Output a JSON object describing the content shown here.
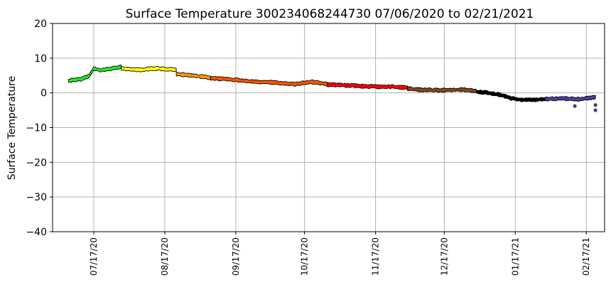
{
  "chart_data": {
    "type": "scatter",
    "title": "Surface Temperature 300234068244730  07/06/2020 to 02/21/2021",
    "xlabel": "",
    "ylabel": "Surface Temperature",
    "xlim": [
      "2020-06-29",
      "2021-02-25"
    ],
    "ylim": [
      -40,
      20
    ],
    "grid": true,
    "y_ticks": [
      "20",
      "10",
      "0",
      "−10",
      "−20",
      "−30",
      "−40"
    ],
    "x_ticks": [
      {
        "date": "2020-07-17",
        "label": "07/17/20"
      },
      {
        "date": "2020-08-17",
        "label": "08/17/20"
      },
      {
        "date": "2020-09-17",
        "label": "09/17/20"
      },
      {
        "date": "2020-10-17",
        "label": "10/17/20"
      },
      {
        "date": "2020-11-17",
        "label": "11/17/20"
      },
      {
        "date": "2020-12-17",
        "label": "12/17/20"
      },
      {
        "date": "2021-01-17",
        "label": "01/17/21"
      },
      {
        "date": "2021-02-17",
        "label": "02/17/21"
      }
    ],
    "series": [
      {
        "color": "#22ee22",
        "points": [
          [
            "2020-07-06",
            3.5
          ],
          [
            "2020-07-09",
            3.8
          ],
          [
            "2020-07-12",
            4.0
          ],
          [
            "2020-07-15",
            5.0
          ],
          [
            "2020-07-17",
            7.0
          ],
          [
            "2020-07-20",
            6.5
          ],
          [
            "2020-07-23",
            6.8
          ],
          [
            "2020-07-26",
            7.2
          ],
          [
            "2020-07-29",
            7.5
          ]
        ]
      },
      {
        "color": "#ffff00",
        "points": [
          [
            "2020-07-29",
            7.0
          ],
          [
            "2020-08-02",
            6.8
          ],
          [
            "2020-08-06",
            6.6
          ],
          [
            "2020-08-10",
            6.9
          ],
          [
            "2020-08-14",
            7.0
          ],
          [
            "2020-08-18",
            6.8
          ],
          [
            "2020-08-22",
            6.6
          ]
        ]
      },
      {
        "color": "#ff9900",
        "points": [
          [
            "2020-08-22",
            5.4
          ],
          [
            "2020-08-27",
            5.1
          ],
          [
            "2020-09-01",
            4.8
          ],
          [
            "2020-09-06",
            4.3
          ]
        ]
      },
      {
        "color": "#ff5500",
        "points": [
          [
            "2020-09-06",
            4.2
          ],
          [
            "2020-09-15",
            3.9
          ],
          [
            "2020-09-22",
            3.4
          ],
          [
            "2020-09-29",
            3.1
          ],
          [
            "2020-10-06",
            2.9
          ],
          [
            "2020-10-13",
            2.5
          ],
          [
            "2020-10-20",
            3.2
          ],
          [
            "2020-10-27",
            2.5
          ]
        ]
      },
      {
        "color": "#ff0000",
        "points": [
          [
            "2020-10-27",
            2.4
          ],
          [
            "2020-11-03",
            2.2
          ],
          [
            "2020-11-10",
            2.0
          ],
          [
            "2020-11-17",
            1.8
          ],
          [
            "2020-11-24",
            1.8
          ],
          [
            "2020-12-01",
            1.5
          ]
        ]
      },
      {
        "color": "#8b4513",
        "points": [
          [
            "2020-12-01",
            1.3
          ],
          [
            "2020-12-06",
            0.9
          ],
          [
            "2020-12-11",
            0.8
          ],
          [
            "2020-12-16",
            0.8
          ],
          [
            "2020-12-21",
            0.9
          ],
          [
            "2020-12-26",
            0.9
          ],
          [
            "2020-12-31",
            0.5
          ]
        ]
      },
      {
        "color": "#000000",
        "points": [
          [
            "2020-12-31",
            0.4
          ],
          [
            "2021-01-05",
            0.0
          ],
          [
            "2021-01-10",
            -0.5
          ],
          [
            "2021-01-15",
            -1.5
          ],
          [
            "2021-01-20",
            -2.0
          ],
          [
            "2021-01-25",
            -2.0
          ],
          [
            "2021-01-30",
            -1.8
          ]
        ]
      },
      {
        "color": "#4b3fa0",
        "points": [
          [
            "2021-01-30",
            -1.8
          ],
          [
            "2021-02-05",
            -1.6
          ],
          [
            "2021-02-10",
            -1.7
          ],
          [
            "2021-02-15",
            -1.8
          ],
          [
            "2021-02-18",
            -1.5
          ],
          [
            "2021-02-21",
            -1.2
          ]
        ]
      }
    ],
    "outliers": [
      {
        "date": "2021-02-12",
        "value": -3.8,
        "color": "#4b3fa0"
      },
      {
        "date": "2021-02-21",
        "value": -3.5,
        "color": "#4b3fa0"
      },
      {
        "date": "2021-02-21",
        "value": -5.0,
        "color": "#4b3fa0"
      }
    ]
  }
}
